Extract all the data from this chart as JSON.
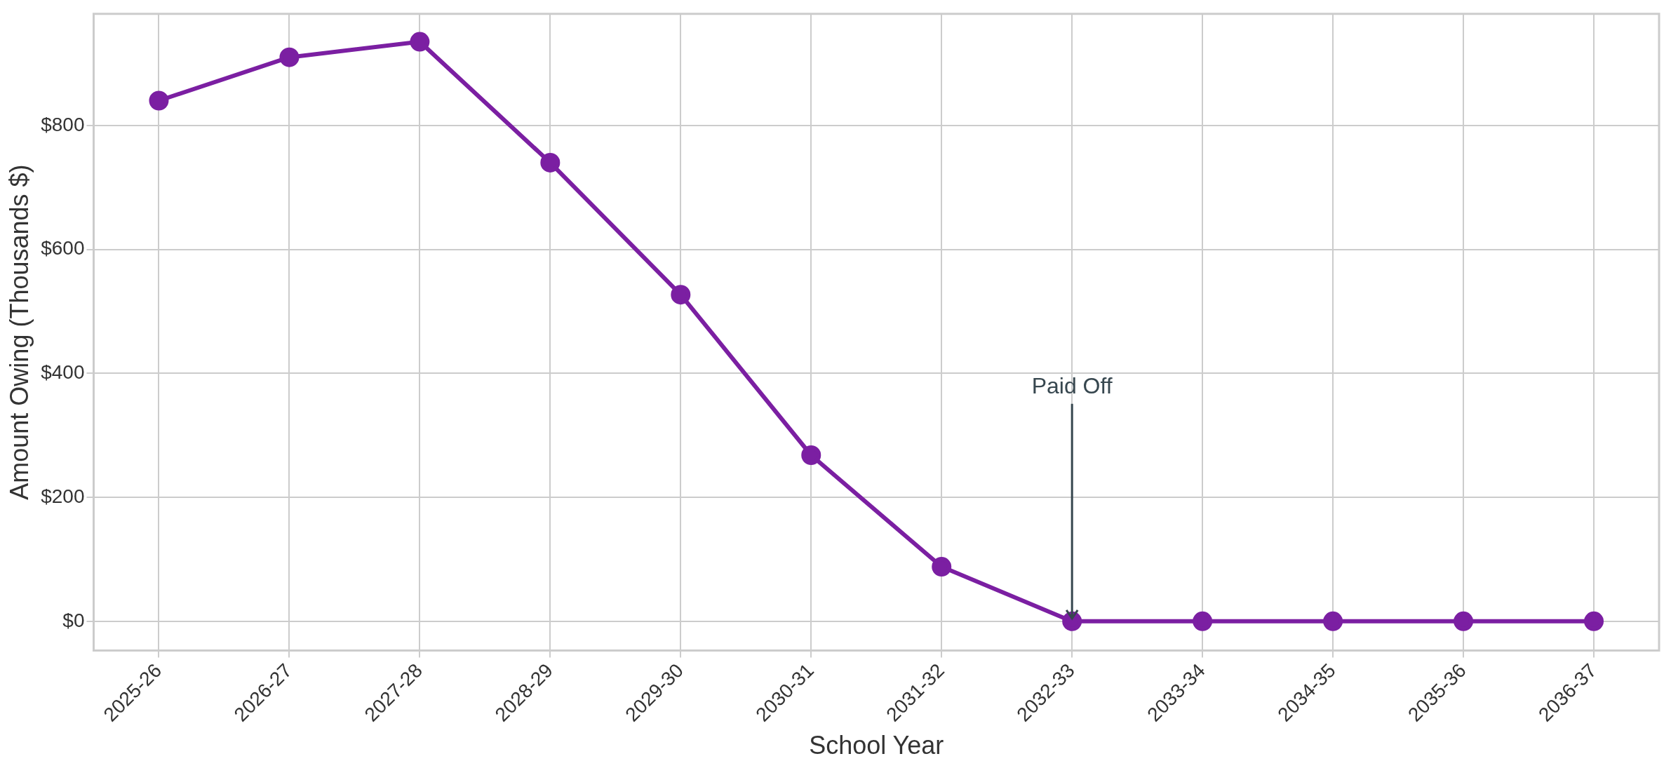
{
  "chart_data": {
    "type": "line",
    "xlabel": "School Year",
    "ylabel": "Amount Owing (Thousands $)",
    "categories": [
      "2025-26",
      "2026-27",
      "2027-28",
      "2028-29",
      "2029-30",
      "2030-31",
      "2031-32",
      "2032-33",
      "2033-34",
      "2034-35",
      "2035-36",
      "2036-37"
    ],
    "series": [
      {
        "color": "#7b1fa2",
        "values": [
          840,
          910,
          935,
          740,
          527,
          268,
          88,
          0,
          0,
          0,
          0,
          0
        ]
      }
    ],
    "ylim": [
      -47,
      980
    ],
    "yticks": [
      {
        "value": 0,
        "label": "$0"
      },
      {
        "value": 200,
        "label": "$200"
      },
      {
        "value": 400,
        "label": "$400"
      },
      {
        "value": 600,
        "label": "$600"
      },
      {
        "value": 800,
        "label": "$800"
      }
    ],
    "grid": true,
    "legend": false,
    "marker": "circle",
    "line_style": "solid",
    "annotations": [
      {
        "text": "Paid Off",
        "x": "2032-33",
        "y": 0
      }
    ]
  }
}
